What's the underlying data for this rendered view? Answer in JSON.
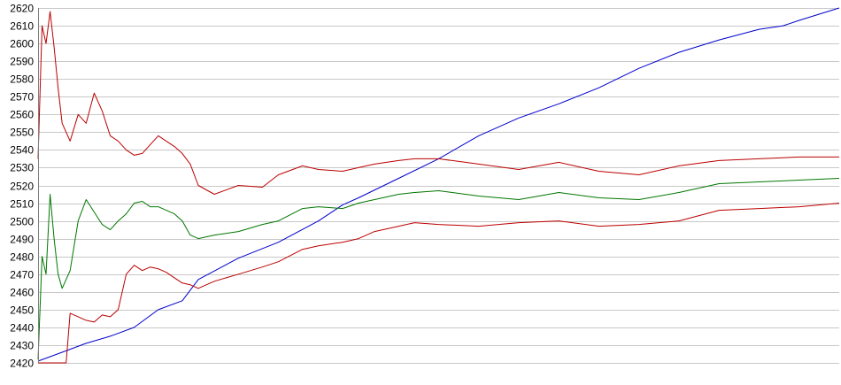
{
  "chart_data": {
    "type": "line",
    "title": "",
    "xlabel": "",
    "ylabel": "",
    "ylim": [
      2420,
      2620
    ],
    "xlim": [
      0,
      100
    ],
    "grid": true,
    "legend": "none",
    "y_ticks": [
      "2620",
      "2610",
      "2600",
      "2590",
      "2580",
      "2570",
      "2560",
      "2550",
      "2540",
      "2530",
      "2520",
      "2510",
      "2500",
      "2490",
      "2480",
      "2470",
      "2460",
      "2450",
      "2440",
      "2430",
      "2420"
    ],
    "series": [
      {
        "color": "#0000cc",
        "x": [
          0,
          3,
          6,
          9,
          12,
          15,
          18,
          20,
          25,
          30,
          35,
          38,
          40,
          45,
          50,
          55,
          60,
          65,
          70,
          75,
          80,
          85,
          90,
          93,
          95,
          100
        ],
        "values": [
          2421,
          2426,
          2431,
          2435,
          2440,
          2450,
          2455,
          2467,
          2479,
          2488,
          2500,
          2509,
          2513,
          2524,
          2535,
          2548,
          2558,
          2566,
          2575,
          2586,
          2595,
          2602,
          2608,
          2610,
          2613,
          2620
        ]
      },
      {
        "color": "#bb0000",
        "x": [
          0,
          0.5,
          1,
          1.5,
          2,
          2.5,
          3,
          4,
          5,
          6,
          7,
          8,
          9,
          10,
          11,
          12,
          13,
          14,
          15,
          16,
          17,
          18,
          19,
          20,
          22,
          25,
          28,
          30,
          33,
          35,
          38,
          40,
          42,
          45,
          47,
          50,
          55,
          60,
          65,
          70,
          75,
          80,
          85,
          90,
          95,
          100
        ],
        "values": [
          2535,
          2610,
          2600,
          2618,
          2598,
          2575,
          2555,
          2545,
          2560,
          2555,
          2572,
          2562,
          2548,
          2545,
          2540,
          2537,
          2538,
          2543,
          2548,
          2545,
          2542,
          2538,
          2532,
          2520,
          2515,
          2520,
          2519,
          2526,
          2531,
          2529,
          2528,
          2530,
          2532,
          2534,
          2535,
          2535,
          2532,
          2529,
          2533,
          2528,
          2526,
          2531,
          2534,
          2535,
          2536,
          2536
        ]
      },
      {
        "color": "#007700",
        "x": [
          0,
          0.5,
          1,
          1.5,
          2,
          2.5,
          3,
          4,
          5,
          6,
          7,
          8,
          9,
          10,
          11,
          12,
          13,
          14,
          15,
          16,
          17,
          18,
          19,
          20,
          22,
          25,
          28,
          30,
          33,
          35,
          38,
          40,
          42,
          45,
          47,
          50,
          55,
          60,
          65,
          70,
          75,
          80,
          85,
          90,
          95,
          100
        ],
        "values": [
          2422,
          2480,
          2470,
          2515,
          2490,
          2470,
          2462,
          2472,
          2500,
          2512,
          2505,
          2498,
          2495,
          2500,
          2504,
          2510,
          2511,
          2508,
          2508,
          2506,
          2504,
          2500,
          2492,
          2490,
          2492,
          2494,
          2498,
          2500,
          2507,
          2508,
          2507,
          2510,
          2512,
          2515,
          2516,
          2517,
          2514,
          2512,
          2516,
          2513,
          2512,
          2516,
          2521,
          2522,
          2523,
          2524
        ]
      },
      {
        "color": "#bb0000",
        "x": [
          0,
          1,
          2,
          3,
          3.5,
          4,
          5,
          6,
          7,
          8,
          9,
          10,
          11,
          12,
          13,
          14,
          15,
          16,
          17,
          18,
          19,
          20,
          22,
          25,
          28,
          30,
          33,
          35,
          38,
          40,
          42,
          45,
          47,
          50,
          55,
          60,
          65,
          70,
          75,
          80,
          85,
          90,
          95,
          100
        ],
        "values": [
          2420,
          2420,
          2420,
          2420,
          2420,
          2448,
          2446,
          2444,
          2443,
          2447,
          2446,
          2450,
          2470,
          2475,
          2472,
          2474,
          2473,
          2471,
          2468,
          2465,
          2464,
          2462,
          2466,
          2470,
          2474,
          2477,
          2484,
          2486,
          2488,
          2490,
          2494,
          2497,
          2499,
          2498,
          2497,
          2499,
          2500,
          2497,
          2498,
          2500,
          2506,
          2507,
          2508,
          2510
        ]
      }
    ]
  }
}
